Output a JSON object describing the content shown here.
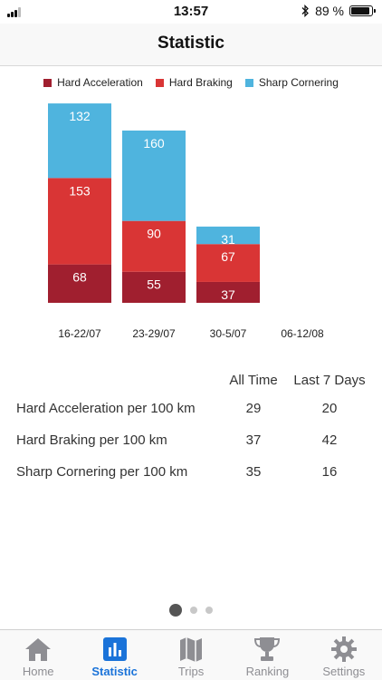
{
  "status": {
    "time": "13:57",
    "battery": "89 %",
    "battery_level": 0.89
  },
  "header": {
    "title": "Statistic"
  },
  "colors": {
    "hard_acceleration": "#a01f2f",
    "hard_braking": "#d93535",
    "sharp_cornering": "#4fb4de",
    "active_tab": "#1a73d9"
  },
  "chart_data": {
    "type": "bar",
    "stacked": true,
    "categories": [
      "16-22/07",
      "23-29/07",
      "30-5/07",
      "06-12/08"
    ],
    "series": [
      {
        "name": "Hard Acceleration",
        "values": [
          68,
          55,
          37,
          0
        ]
      },
      {
        "name": "Hard Braking",
        "values": [
          153,
          90,
          67,
          0
        ]
      },
      {
        "name": "Sharp Cornering",
        "values": [
          132,
          160,
          31,
          0
        ]
      }
    ],
    "legend": "top",
    "grid": false
  },
  "stats": {
    "headers": {
      "all_time": "All Time",
      "last_7_days": "Last 7 Days"
    },
    "rows": [
      {
        "label": "Hard Acceleration per 100 km",
        "all_time": "29",
        "last_7_days": "20"
      },
      {
        "label": "Hard Braking per 100 km",
        "all_time": "37",
        "last_7_days": "42"
      },
      {
        "label": "Sharp Cornering per 100 km",
        "all_time": "35",
        "last_7_days": "16"
      }
    ]
  },
  "pager": {
    "pages": 3,
    "current": 1
  },
  "tabs": [
    {
      "label": "Home",
      "icon": "home-icon"
    },
    {
      "label": "Statistic",
      "icon": "bar-chart-icon",
      "active": true
    },
    {
      "label": "Trips",
      "icon": "map-icon"
    },
    {
      "label": "Ranking",
      "icon": "trophy-icon"
    },
    {
      "label": "Settings",
      "icon": "gear-icon"
    }
  ]
}
